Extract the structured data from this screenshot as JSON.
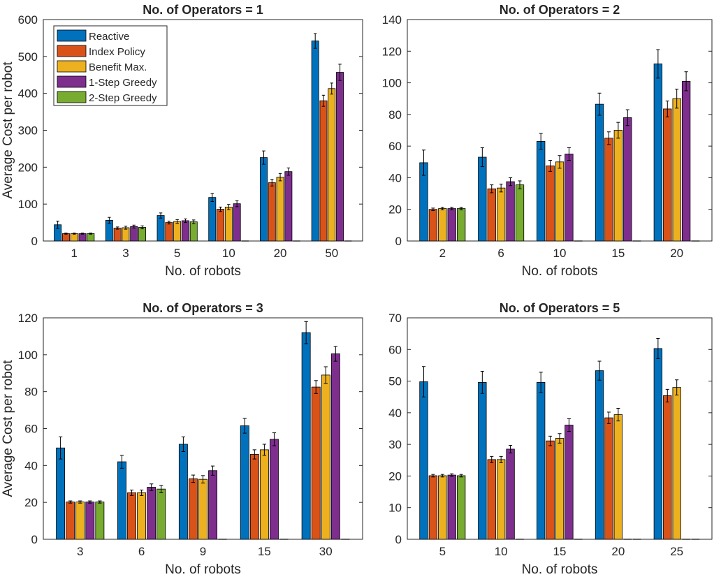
{
  "colors": {
    "Reactive": "#0072BD",
    "Index Policy": "#D95319",
    "Benefit Max.": "#EDB120",
    "1-Step Greedy": "#7E2F8E",
    "2-Step Greedy": "#77AC30"
  },
  "legend": {
    "placement": "top-left of first panel",
    "entries": [
      "Reactive",
      "Index Policy",
      "Benefit Max.",
      "1-Step Greedy",
      "2-Step Greedy"
    ]
  },
  "chart_data": [
    {
      "type": "bar",
      "title": "No. of Operators = 1",
      "xlabel": "No. of robots",
      "ylabel": "Average Cost per robot",
      "ylim": [
        0,
        600
      ],
      "yticks": [
        0,
        100,
        200,
        300,
        400,
        500,
        600
      ],
      "categories": [
        "1",
        "3",
        "5",
        "10",
        "20",
        "50"
      ],
      "series": [
        {
          "name": "Reactive",
          "values": [
            44,
            56,
            69,
            118,
            226,
            542
          ],
          "errors": [
            10,
            8,
            7,
            11,
            18,
            20
          ]
        },
        {
          "name": "Index Policy",
          "values": [
            20,
            35,
            50,
            86,
            158,
            380
          ],
          "errors": [
            1.5,
            3,
            4,
            6,
            9,
            15
          ]
        },
        {
          "name": "Benefit Max.",
          "values": [
            20,
            36,
            53,
            92,
            173,
            413
          ],
          "errors": [
            1.5,
            4,
            5,
            7,
            10,
            15
          ]
        },
        {
          "name": "1-Step Greedy",
          "values": [
            20,
            39,
            55,
            101,
            188,
            457
          ],
          "errors": [
            1.5,
            4,
            5,
            8,
            10,
            22
          ]
        },
        {
          "name": "2-Step Greedy",
          "values": [
            20,
            37,
            52,
            0,
            0,
            0
          ],
          "errors": [
            1.5,
            4,
            5,
            0,
            0,
            0
          ]
        }
      ]
    },
    {
      "type": "bar",
      "title": "No. of Operators = 2",
      "xlabel": "No. of robots",
      "ylabel": "",
      "ylim": [
        0,
        140
      ],
      "yticks": [
        0,
        20,
        40,
        60,
        80,
        100,
        120,
        140
      ],
      "categories": [
        "2",
        "6",
        "10",
        "15",
        "20"
      ],
      "series": [
        {
          "name": "Reactive",
          "values": [
            49.5,
            53,
            63,
            86.5,
            112
          ],
          "errors": [
            8,
            6,
            5,
            7,
            9
          ]
        },
        {
          "name": "Index Policy",
          "values": [
            20,
            33,
            47.5,
            65,
            83.5
          ],
          "errors": [
            0.8,
            2.5,
            3.5,
            4,
            5
          ]
        },
        {
          "name": "Benefit Max.",
          "values": [
            20.5,
            33.5,
            50,
            70,
            90
          ],
          "errors": [
            0.8,
            2.5,
            4,
            5,
            6
          ]
        },
        {
          "name": "1-Step Greedy",
          "values": [
            20.5,
            37.5,
            55,
            78,
            101
          ],
          "errors": [
            0.8,
            2.5,
            4,
            5,
            6
          ]
        },
        {
          "name": "2-Step Greedy",
          "values": [
            20.5,
            35.5,
            0,
            0,
            0
          ],
          "errors": [
            0.8,
            2.5,
            0,
            0,
            0
          ]
        }
      ]
    },
    {
      "type": "bar",
      "title": "No. of Operators = 3",
      "xlabel": "No. of robots",
      "ylabel": "Average Cost per robot",
      "ylim": [
        0,
        120
      ],
      "yticks": [
        0,
        20,
        40,
        60,
        80,
        100,
        120
      ],
      "categories": [
        "3",
        "6",
        "9",
        "15",
        "30"
      ],
      "series": [
        {
          "name": "Reactive",
          "values": [
            49.5,
            42,
            51.5,
            61.5,
            112
          ],
          "errors": [
            6,
            3.5,
            4,
            4,
            6
          ]
        },
        {
          "name": "Index Policy",
          "values": [
            20.2,
            25.2,
            32.8,
            46,
            82.5
          ],
          "errors": [
            0.6,
            1.5,
            2,
            2.5,
            3.5
          ]
        },
        {
          "name": "Benefit Max.",
          "values": [
            20.2,
            25.2,
            32.5,
            48.5,
            89
          ],
          "errors": [
            0.6,
            1.5,
            2,
            3,
            4.5
          ]
        },
        {
          "name": "1-Step Greedy",
          "values": [
            20.2,
            28.2,
            37.2,
            54.2,
            100.5
          ],
          "errors": [
            0.6,
            1.8,
            2.5,
            3.5,
            4
          ]
        },
        {
          "name": "2-Step Greedy",
          "values": [
            20.2,
            27.2,
            0,
            0,
            0
          ],
          "errors": [
            0.6,
            2,
            0,
            0,
            0
          ]
        }
      ]
    },
    {
      "type": "bar",
      "title": "No. of Operators = 5",
      "xlabel": "No. of robots",
      "ylabel": "",
      "ylim": [
        0,
        70
      ],
      "yticks": [
        0,
        10,
        20,
        30,
        40,
        50,
        60,
        70
      ],
      "categories": [
        "5",
        "10",
        "15",
        "20",
        "25"
      ],
      "series": [
        {
          "name": "Reactive",
          "values": [
            49.8,
            49.6,
            49.6,
            53.3,
            60.3
          ],
          "errors": [
            4.8,
            3.5,
            3.2,
            3,
            3.2
          ]
        },
        {
          "name": "Index Policy",
          "values": [
            20.1,
            25.2,
            31.1,
            38.4,
            45.4
          ],
          "errors": [
            0.4,
            1,
            1.5,
            1.8,
            2
          ]
        },
        {
          "name": "Benefit Max.",
          "values": [
            20.1,
            25.2,
            31.9,
            39.4,
            48
          ],
          "errors": [
            0.4,
            1,
            1.5,
            2,
            2.4
          ]
        },
        {
          "name": "1-Step Greedy",
          "values": [
            20.3,
            28.5,
            36.1,
            0,
            0
          ],
          "errors": [
            0.4,
            1.2,
            2,
            0,
            0
          ]
        },
        {
          "name": "2-Step Greedy",
          "values": [
            20.1,
            0,
            0,
            0,
            0
          ],
          "errors": [
            0.4,
            0,
            0,
            0,
            0
          ]
        }
      ]
    }
  ]
}
